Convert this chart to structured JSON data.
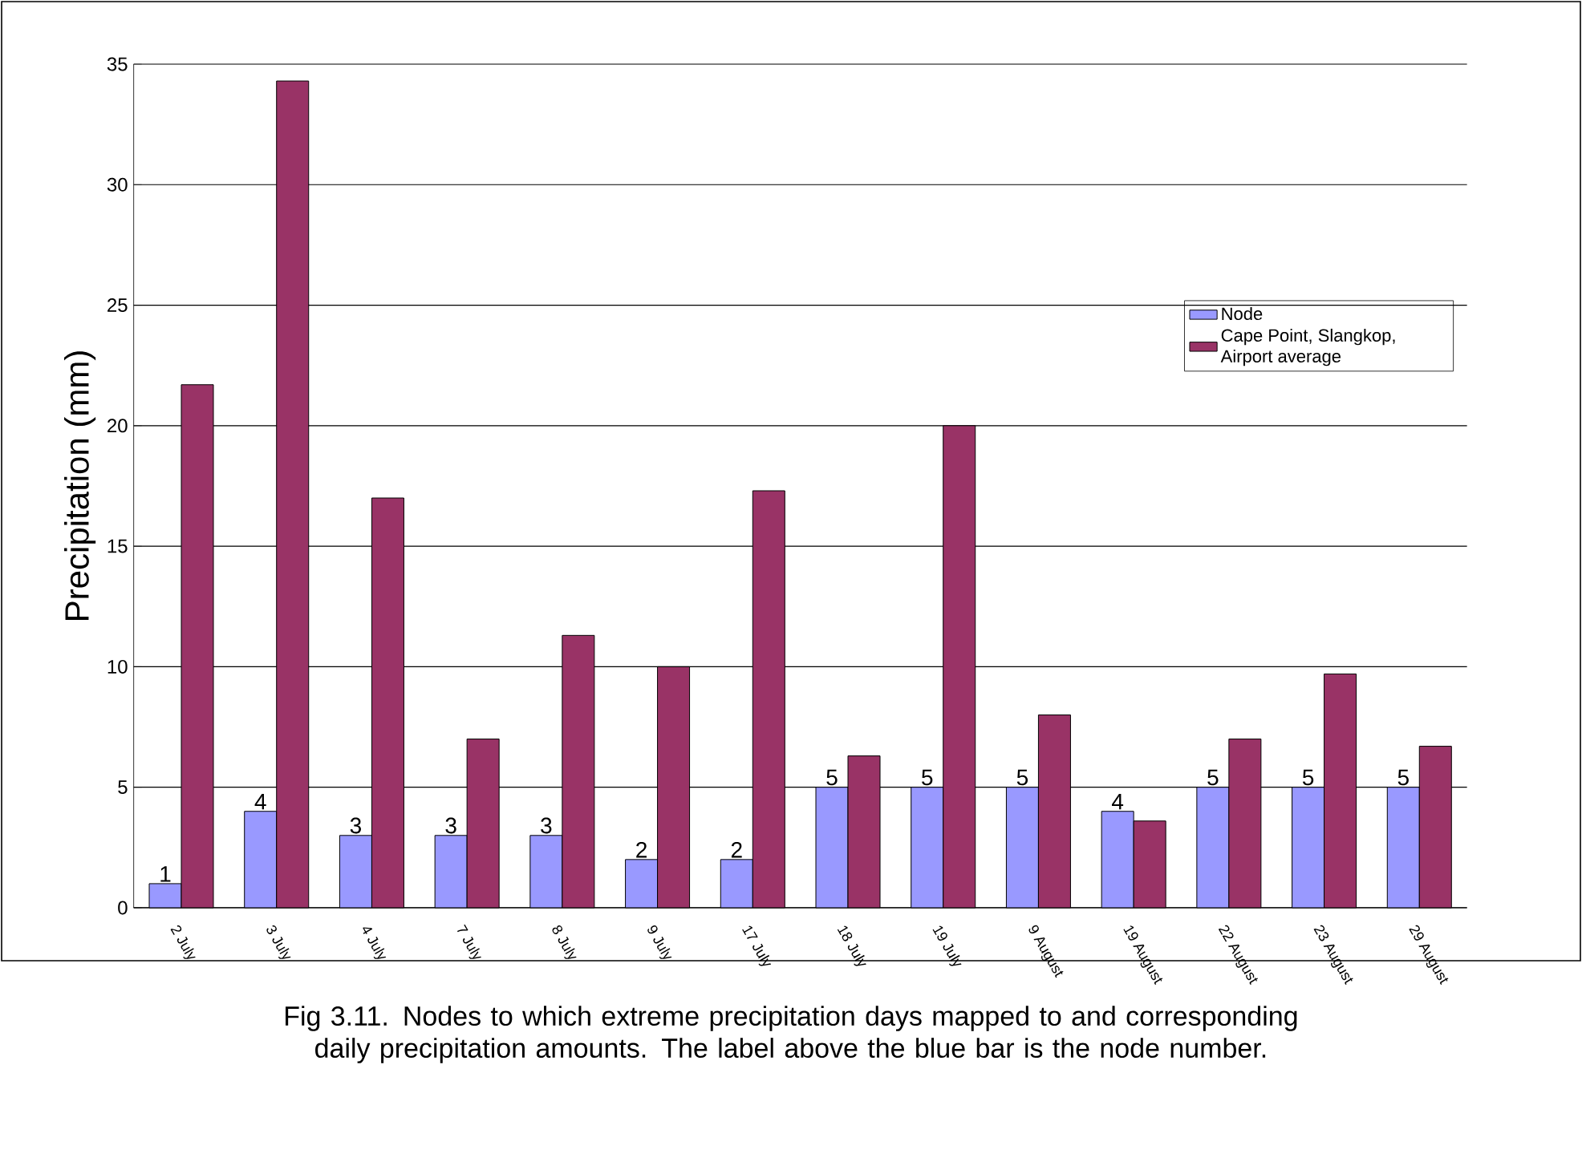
{
  "chart_data": {
    "type": "bar",
    "ylabel": "Precipitation (mm)",
    "categories": [
      "2 July",
      "3 July",
      "4 July",
      "7 July",
      "8 July",
      "9 July",
      "17 July",
      "18 July",
      "19 July",
      "9 August",
      "19 August",
      "22 August",
      "23 August",
      "29 August"
    ],
    "series": [
      {
        "name": "Node",
        "color": "#9999ff",
        "values": [
          1,
          4,
          3,
          3,
          3,
          2,
          2,
          5,
          5,
          5,
          4,
          5,
          5,
          5
        ],
        "value_labels": [
          "1",
          "4",
          "3",
          "3",
          "3",
          "2",
          "2",
          "5",
          "5",
          "5",
          "4",
          "5",
          "5",
          "5"
        ]
      },
      {
        "name": "Cape Point, Slangkop, Airport average",
        "color": "#993366",
        "values": [
          21.7,
          34.3,
          17,
          7,
          11.3,
          10,
          17.3,
          6.3,
          20,
          8,
          3.6,
          7,
          9.7,
          6.7
        ]
      }
    ],
    "ylim": [
      0,
      35
    ],
    "yticks": [
      0,
      5,
      10,
      15,
      20,
      25,
      30,
      35
    ],
    "grid": "y",
    "legend": "right",
    "annotations": [
      "Fig 3.11. Nodes to which extreme precipitation days mapped to and corresponding daily precipitation amounts. The label above the blue bar is the node number."
    ]
  }
}
